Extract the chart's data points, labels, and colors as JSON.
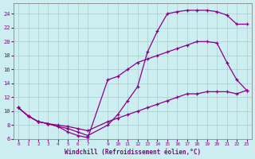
{
  "xlabel": "Windchill (Refroidissement éolien,°C)",
  "bg_color": "#cceef0",
  "grid_color": "#aacccc",
  "line_color": "#880088",
  "curve1_x": [
    0,
    1,
    2,
    3,
    4,
    5,
    6,
    7,
    9,
    10,
    11,
    12,
    13,
    14,
    15,
    16,
    17,
    18,
    19,
    20,
    21,
    22,
    23
  ],
  "curve1_y": [
    10.5,
    9.3,
    8.5,
    8.2,
    7.8,
    7.5,
    7.0,
    6.5,
    8.0,
    9.5,
    11.5,
    13.5,
    18.5,
    21.5,
    24.0,
    24.3,
    24.5,
    24.5,
    24.5,
    24.3,
    23.8,
    22.5,
    22.5
  ],
  "curve2_x": [
    0,
    1,
    2,
    3,
    4,
    5,
    6,
    7,
    9,
    10,
    11,
    12,
    13,
    14,
    15,
    16,
    17,
    18,
    19,
    20,
    21,
    22,
    23
  ],
  "curve2_y": [
    10.5,
    9.3,
    8.5,
    8.2,
    7.8,
    7.0,
    6.5,
    6.2,
    14.5,
    15.0,
    16.0,
    17.0,
    17.5,
    18.0,
    18.5,
    19.0,
    19.5,
    20.0,
    20.0,
    19.8,
    17.0,
    14.5,
    13.0
  ],
  "curve3_x": [
    0,
    1,
    2,
    3,
    4,
    5,
    6,
    7,
    9,
    10,
    11,
    12,
    13,
    14,
    15,
    16,
    17,
    18,
    19,
    20,
    21,
    22,
    23
  ],
  "curve3_y": [
    10.5,
    9.3,
    8.5,
    8.2,
    8.0,
    7.8,
    7.5,
    7.2,
    8.5,
    9.0,
    9.5,
    10.0,
    10.5,
    11.0,
    11.5,
    12.0,
    12.5,
    12.5,
    12.8,
    12.8,
    12.8,
    12.5,
    13.0
  ],
  "ylim": [
    6,
    25.5
  ],
  "xlim": [
    -0.5,
    23.5
  ],
  "yticks": [
    6,
    8,
    10,
    12,
    14,
    16,
    18,
    20,
    22,
    24
  ],
  "xticks": [
    0,
    1,
    2,
    3,
    4,
    5,
    6,
    7,
    9,
    10,
    11,
    12,
    13,
    14,
    15,
    16,
    17,
    18,
    19,
    20,
    21,
    22,
    23
  ]
}
